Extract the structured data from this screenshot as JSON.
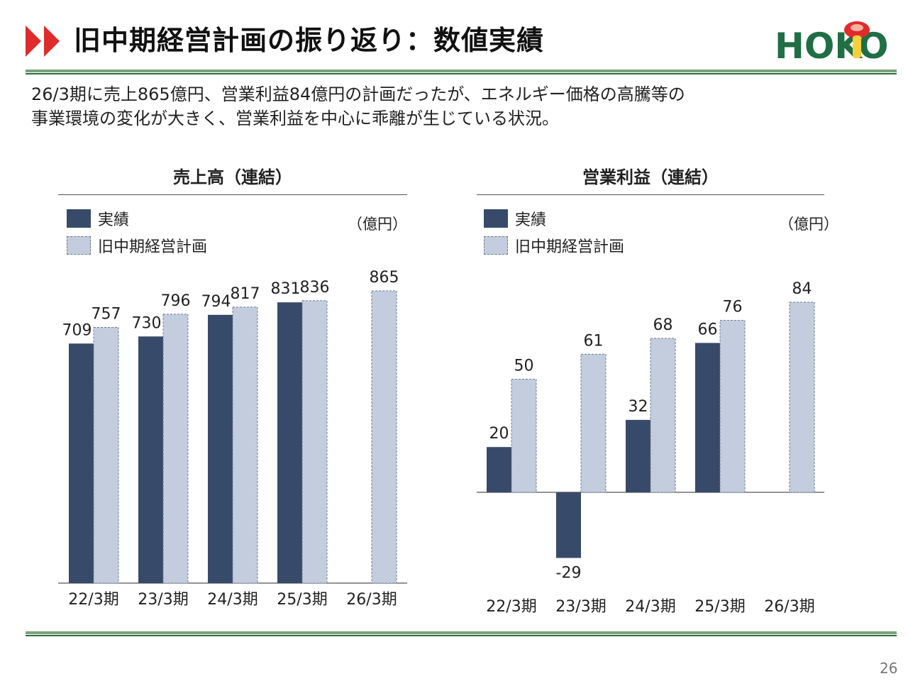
{
  "header": {
    "title": "旧中期経営計画の振り返り：数値実績",
    "logo_text": "HOKTO"
  },
  "lead": {
    "line1": "26/3期に売上865億円、営業利益84億円の計画だったが、エネルギー価格の高騰等の",
    "line2": "事業環境の変化が大きく、営業利益を中心に乖離が生じている状況。"
  },
  "legend": {
    "actual": "実績",
    "plan": "旧中期経営計画"
  },
  "unit": "（億円）",
  "colors": {
    "actual": "#374a69",
    "plan": "#c3cddd",
    "plan_border": "#6f7b90",
    "accent_red": "#e02b2b",
    "brand_green": "#1f6e44",
    "rule_green": "#2d6e3e"
  },
  "chart_data": [
    {
      "type": "bar",
      "title": "売上高（連結）",
      "categories": [
        "22/3期",
        "23/3期",
        "24/3期",
        "25/3期",
        "26/3期"
      ],
      "series": [
        {
          "name": "実績",
          "values": [
            709,
            730,
            794,
            831,
            null
          ]
        },
        {
          "name": "旧中期経営計画",
          "values": [
            757,
            796,
            817,
            836,
            865
          ]
        }
      ],
      "unit": "（億円）",
      "ylim": [
        0,
        900
      ],
      "grid": false,
      "legend": "top-left"
    },
    {
      "type": "bar",
      "title": "営業利益（連結）",
      "categories": [
        "22/3期",
        "23/3期",
        "24/3期",
        "25/3期",
        "26/3期"
      ],
      "series": [
        {
          "name": "実績",
          "values": [
            20,
            -29,
            32,
            66,
            null
          ]
        },
        {
          "name": "旧中期経営計画",
          "values": [
            50,
            61,
            68,
            76,
            84
          ]
        }
      ],
      "unit": "（億円）",
      "ylim": [
        -40,
        100
      ],
      "grid": false,
      "legend": "top-left"
    }
  ],
  "page_number": "26"
}
